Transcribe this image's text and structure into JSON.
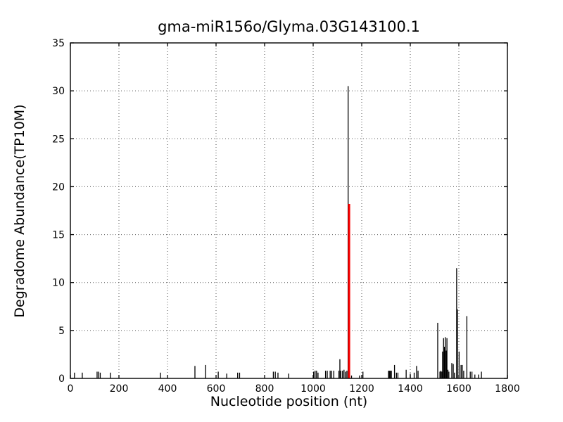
{
  "page": {
    "background": "#ffffff"
  },
  "chart_data": {
    "type": "bar",
    "subtype": "stem-degradome-t-plot",
    "title": "gma-miR156o/Glyma.03G143100.1",
    "xlabel": "Nucleotide position (nt)",
    "ylabel": "Degradome Abundance(TP10M)",
    "xlim": [
      0,
      1800
    ],
    "ylim": [
      0,
      35
    ],
    "xticks": [
      0,
      200,
      400,
      600,
      800,
      1000,
      1200,
      1400,
      1600,
      1800
    ],
    "yticks": [
      0,
      5,
      10,
      15,
      20,
      25,
      30,
      35
    ],
    "grid": {
      "show": true,
      "style": "dotted",
      "color": "#555555"
    },
    "legend": "none",
    "colors": {
      "stem": "#000000",
      "highlight": "#ff0000",
      "frame": "#000000",
      "text": "#000000"
    },
    "series": [
      {
        "name": "degradome-fragments",
        "color": "#000000",
        "linewidth": 1.3,
        "points": [
          [
            17,
            0.6
          ],
          [
            49,
            0.6
          ],
          [
            110,
            0.7
          ],
          [
            116,
            0.7
          ],
          [
            123,
            0.6
          ],
          [
            165,
            0.6
          ],
          [
            371,
            0.6
          ],
          [
            513,
            1.3
          ],
          [
            557,
            1.4
          ],
          [
            609,
            0.7
          ],
          [
            644,
            0.5
          ],
          [
            689,
            0.6
          ],
          [
            697,
            0.6
          ],
          [
            836,
            0.7
          ],
          [
            844,
            0.7
          ],
          [
            855,
            0.6
          ],
          [
            899,
            0.5
          ],
          [
            1002,
            0.7
          ],
          [
            1008,
            0.8
          ],
          [
            1014,
            0.8
          ],
          [
            1020,
            0.6
          ],
          [
            1051,
            0.8
          ],
          [
            1058,
            0.8
          ],
          [
            1070,
            0.8
          ],
          [
            1076,
            0.8
          ],
          [
            1085,
            0.8
          ],
          [
            1106,
            0.8
          ],
          [
            1110,
            2.0
          ],
          [
            1114,
            0.8
          ],
          [
            1121,
            0.8
          ],
          [
            1127,
            0.9
          ],
          [
            1133,
            0.7
          ],
          [
            1139,
            0.8
          ],
          [
            1144,
            30.5
          ],
          [
            1158,
            0.3
          ],
          [
            1191,
            0.3
          ],
          [
            1205,
            0.7
          ],
          [
            1310,
            0.8
          ],
          [
            1314,
            0.8
          ],
          [
            1318,
            0.8
          ],
          [
            1322,
            0.8
          ],
          [
            1335,
            1.4
          ],
          [
            1343,
            0.6
          ],
          [
            1349,
            0.6
          ],
          [
            1383,
            0.9
          ],
          [
            1400,
            0.5
          ],
          [
            1416,
            0.6
          ],
          [
            1426,
            1.3
          ],
          [
            1432,
            0.8
          ],
          [
            1513,
            5.8
          ],
          [
            1522,
            0.7
          ],
          [
            1526,
            0.8
          ],
          [
            1530,
            0.7
          ],
          [
            1533,
            2.8
          ],
          [
            1537,
            4.2
          ],
          [
            1541,
            3.3
          ],
          [
            1544,
            4.3
          ],
          [
            1548,
            2.9
          ],
          [
            1551,
            4.2
          ],
          [
            1555,
            0.9
          ],
          [
            1559,
            0.7
          ],
          [
            1571,
            1.6
          ],
          [
            1577,
            1.5
          ],
          [
            1582,
            0.6
          ],
          [
            1591,
            11.5
          ],
          [
            1594,
            7.2
          ],
          [
            1601,
            2.8
          ],
          [
            1609,
            1.4
          ],
          [
            1614,
            1.4
          ],
          [
            1620,
            0.8
          ],
          [
            1633,
            6.5
          ],
          [
            1647,
            0.7
          ],
          [
            1654,
            0.7
          ],
          [
            1666,
            0.4
          ],
          [
            1681,
            0.4
          ],
          [
            1693,
            0.7
          ]
        ]
      },
      {
        "name": "mirna-cleavage-site",
        "color": "#ff0000",
        "linewidth": 3,
        "points": [
          [
            1148,
            18.2
          ]
        ]
      }
    ]
  }
}
